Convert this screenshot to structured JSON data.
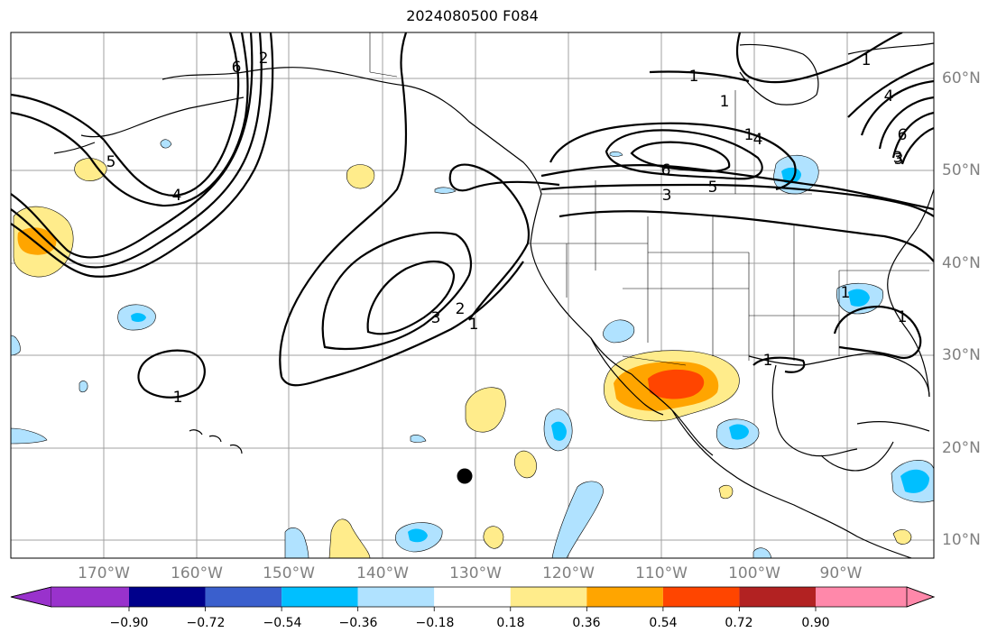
{
  "title": "2024080500 F084",
  "latitude_labels": [
    "60°N",
    "50°N",
    "40°N",
    "30°N",
    "20°N",
    "10°N"
  ],
  "longitude_labels": [
    "170°W",
    "160°W",
    "150°W",
    "140°W",
    "130°W",
    "120°W",
    "110°W",
    "100°W",
    "90°W"
  ],
  "contour_labels": [
    "1",
    "2",
    "3",
    "4",
    "5",
    "6",
    "1",
    "3",
    "5",
    "6",
    "1",
    "2",
    "3",
    "1",
    "1",
    "1",
    "4",
    "6",
    "3",
    "1",
    "1",
    "4",
    "1"
  ],
  "colorbar": {
    "ticks": [
      "−0.90",
      "−0.72",
      "−0.54",
      "−0.36",
      "−0.18",
      "0.18",
      "0.36",
      "0.54",
      "0.72",
      "0.90"
    ],
    "colors": [
      "#9932cc",
      "#00008b",
      "#3a5fcd",
      "#00bfff",
      "#b0e2ff",
      "#ffffff",
      "#ffec8b",
      "#ffa500",
      "#ff4500",
      "#b22222",
      "#ff88aa"
    ]
  },
  "colors": {
    "contour": "#000000",
    "grid": "#a0a0a0",
    "coast": "#000000",
    "axis_label": "#808080"
  },
  "marker": "filled-circle"
}
